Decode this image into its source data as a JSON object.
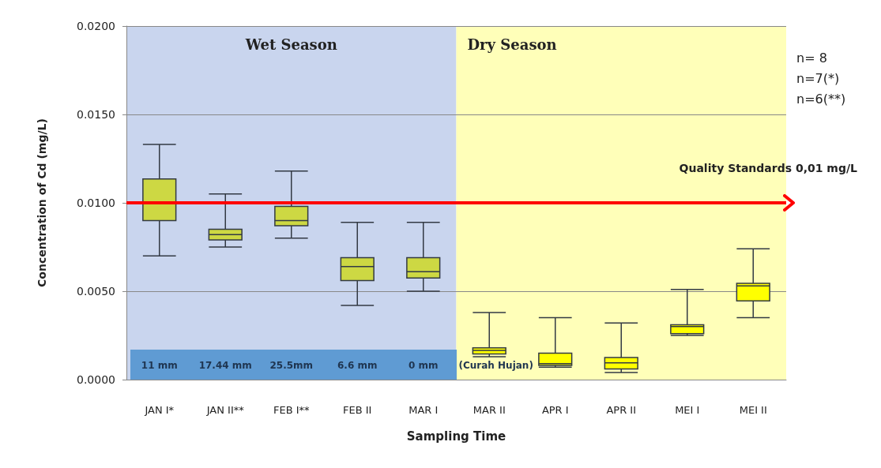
{
  "chart_data": {
    "type": "box",
    "xlabel": "Sampling Time",
    "ylabel": "Concentration of Cd (mg/L)",
    "categories": [
      "JAN I*",
      "JAN II**",
      "FEB I**",
      "FEB II",
      "MAR I",
      "MAR II",
      "APR I",
      "APR II",
      "MEI I",
      "MEI II"
    ],
    "boxes": [
      {
        "low": 0.007,
        "q1": 0.009,
        "median": 0.01,
        "q3": 0.01135,
        "high": 0.0133
      },
      {
        "low": 0.0075,
        "q1": 0.0079,
        "median": 0.0082,
        "q3": 0.0085,
        "high": 0.0105
      },
      {
        "low": 0.008,
        "q1": 0.0087,
        "median": 0.009,
        "q3": 0.0098,
        "high": 0.0118
      },
      {
        "low": 0.0042,
        "q1": 0.0056,
        "median": 0.0064,
        "q3": 0.0069,
        "high": 0.0089
      },
      {
        "low": 0.005,
        "q1": 0.00575,
        "median": 0.0061,
        "q3": 0.0069,
        "high": 0.0089
      },
      {
        "low": 0.0013,
        "q1": 0.00145,
        "median": 0.00165,
        "q3": 0.0018,
        "high": 0.0038
      },
      {
        "low": 0.0007,
        "q1": 0.0008,
        "median": 0.0009,
        "q3": 0.0015,
        "high": 0.0035
      },
      {
        "low": 0.0004,
        "q1": 0.0006,
        "median": 0.00095,
        "q3": 0.00125,
        "high": 0.0032
      },
      {
        "low": 0.0025,
        "q1": 0.0026,
        "median": 0.003,
        "q3": 0.0031,
        "high": 0.0051
      },
      {
        "low": 0.0035,
        "q1": 0.00445,
        "median": 0.0053,
        "q3": 0.00545,
        "high": 0.0074
      }
    ],
    "colors": [
      "#cdd843",
      "#cdd843",
      "#cdd843",
      "#cdd843",
      "#cdd843",
      "#ffff00",
      "#ffff00",
      "#ffff00",
      "#ffff00",
      "#ffff00"
    ],
    "ylim": [
      0,
      0.02
    ],
    "yticks": [
      {
        "value": 0,
        "label": "0.0000"
      },
      {
        "value": 0.005,
        "label": "0.0050"
      },
      {
        "value": 0.01,
        "label": "0.0100"
      },
      {
        "value": 0.015,
        "label": "0.0150"
      },
      {
        "value": 0.02,
        "label": "0.0200"
      }
    ],
    "grid": "y",
    "bands": [
      {
        "axis": "x",
        "from": "JAN I*",
        "to": "MAR I",
        "label": "Wet Season",
        "color": "#c9d5ee"
      },
      {
        "axis": "x",
        "from": "MAR II",
        "to": "MEI II",
        "label": "Dry Season",
        "color": "#ffffb9"
      }
    ],
    "ref_lines": [
      {
        "axis": "y",
        "value": 0.01,
        "label": "Quality Standards  0,01 mg/L",
        "color": "#ff0000"
      }
    ],
    "annotations": [
      "11 mm",
      "17.44 mm",
      "25.5mm",
      "6.6 mm",
      "0 mm",
      "(Curah Hujan)",
      "n= 8",
      "n=7(*)",
      "n=6(**)"
    ]
  }
}
